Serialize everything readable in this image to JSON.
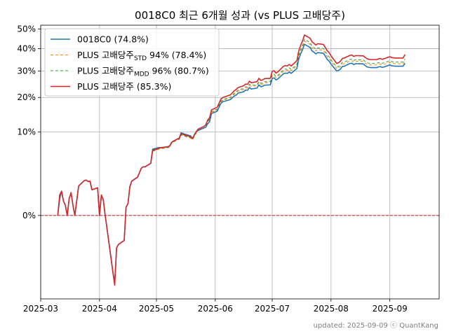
{
  "chart_data": {
    "type": "line",
    "title": "0018C0 최근 6개월 성과 (vs PLUS 고배당주)",
    "footer": "updated: 2025-09-09 ⓒ QuantKang",
    "xlim": [
      "2025-03-01",
      "2025-09-27"
    ],
    "ylim": [
      -0.1,
      0.52
    ],
    "y_scale": "signed-sqrt",
    "grid": true,
    "legend_position": "top-left",
    "zero_line": {
      "value": 0,
      "color": "#d62728",
      "style": "dashed"
    },
    "x_ticks": [
      {
        "date": "2025-03-01",
        "label": "2025-03"
      },
      {
        "date": "2025-04-01",
        "label": "2025-04"
      },
      {
        "date": "2025-05-01",
        "label": "2025-05"
      },
      {
        "date": "2025-06-01",
        "label": "2025-06"
      },
      {
        "date": "2025-07-01",
        "label": "2025-07"
      },
      {
        "date": "2025-08-01",
        "label": "2025-08"
      },
      {
        "date": "2025-09-01",
        "label": "2025-09"
      }
    ],
    "y_ticks": [
      {
        "value": 0.0,
        "label": "0%"
      },
      {
        "value": 0.1,
        "label": "10%"
      },
      {
        "value": 0.2,
        "label": "20%"
      },
      {
        "value": 0.3,
        "label": "30%"
      },
      {
        "value": 0.4,
        "label": "40%"
      },
      {
        "value": 0.5,
        "label": "50%"
      }
    ],
    "x": [
      "2025-03-10",
      "2025-03-11",
      "2025-03-12",
      "2025-03-13",
      "2025-03-14",
      "2025-03-15",
      "2025-03-16",
      "2025-03-17",
      "2025-03-18",
      "2025-03-19",
      "2025-03-21",
      "2025-03-24",
      "2025-03-25",
      "2025-03-26",
      "2025-03-27",
      "2025-03-28",
      "2025-03-31",
      "2025-04-01",
      "2025-04-02",
      "2025-04-03",
      "2025-04-04",
      "2025-04-07",
      "2025-04-08",
      "2025-04-09",
      "2025-04-10",
      "2025-04-11",
      "2025-04-14",
      "2025-04-15",
      "2025-04-16",
      "2025-04-17",
      "2025-04-18",
      "2025-04-21",
      "2025-04-22",
      "2025-04-23",
      "2025-04-24",
      "2025-04-25",
      "2025-04-28",
      "2025-04-29",
      "2025-04-30",
      "2025-05-01",
      "2025-05-02",
      "2025-05-07",
      "2025-05-08",
      "2025-05-09",
      "2025-05-12",
      "2025-05-13",
      "2025-05-14",
      "2025-05-16",
      "2025-05-19",
      "2025-05-20",
      "2025-05-21",
      "2025-05-22",
      "2025-05-23",
      "2025-05-26",
      "2025-05-27",
      "2025-05-28",
      "2025-05-29",
      "2025-05-30",
      "2025-06-02",
      "2025-06-04",
      "2025-06-05",
      "2025-06-09",
      "2025-06-10",
      "2025-06-11",
      "2025-06-12",
      "2025-06-13",
      "2025-06-16",
      "2025-06-17",
      "2025-06-18",
      "2025-06-19",
      "2025-06-20",
      "2025-06-23",
      "2025-06-24",
      "2025-06-25",
      "2025-06-26",
      "2025-06-27",
      "2025-06-30",
      "2025-07-01",
      "2025-07-02",
      "2025-07-03",
      "2025-07-04",
      "2025-07-07",
      "2025-07-08",
      "2025-07-09",
      "2025-07-10",
      "2025-07-11",
      "2025-07-14",
      "2025-07-15",
      "2025-07-16",
      "2025-07-17",
      "2025-07-18",
      "2025-07-21",
      "2025-07-22",
      "2025-07-23",
      "2025-07-24",
      "2025-07-25",
      "2025-07-28",
      "2025-07-29",
      "2025-07-30",
      "2025-07-31",
      "2025-08-01",
      "2025-08-04",
      "2025-08-05",
      "2025-08-06",
      "2025-08-07",
      "2025-08-08",
      "2025-08-11",
      "2025-08-12",
      "2025-08-13",
      "2025-08-14",
      "2025-08-18",
      "2025-08-19",
      "2025-08-20",
      "2025-08-21",
      "2025-08-22",
      "2025-08-25",
      "2025-08-26",
      "2025-08-27",
      "2025-08-28",
      "2025-08-29",
      "2025-09-01",
      "2025-09-02",
      "2025-09-03",
      "2025-09-04",
      "2025-09-05",
      "2025-09-08",
      "2025-09-09"
    ],
    "series": [
      {
        "name": "0018C0 (74.8%)",
        "legend": {
          "main": "0018C0 (74.8%)",
          "sub": "",
          "tail": ""
        },
        "color": "#1f77b4",
        "dash": "",
        "width": 1.6,
        "values": [
          0.0,
          0.004,
          0.0085,
          0.003,
          0.0015,
          0.0,
          0.004,
          0.0075,
          0.0015,
          0.0,
          0.0125,
          0.0175,
          0.018,
          0.0165,
          0.017,
          0.0095,
          0.011,
          0.0,
          0.006,
          0.0035,
          0.0,
          -0.025,
          -0.045,
          -0.065,
          -0.015,
          -0.012,
          -0.009,
          0.001,
          0.002,
          0.012,
          0.017,
          0.021,
          0.026,
          0.032,
          0.034,
          0.034,
          0.039,
          0.063,
          0.064,
          0.065,
          0.066,
          0.067,
          0.07,
          0.077,
          0.084,
          0.086,
          0.098,
          0.095,
          0.091,
          0.085,
          0.094,
          0.101,
          0.104,
          0.11,
          0.112,
          0.121,
          0.126,
          0.149,
          0.156,
          0.181,
          0.186,
          0.193,
          0.199,
          0.205,
          0.208,
          0.215,
          0.22,
          0.226,
          0.225,
          0.235,
          0.23,
          0.233,
          0.245,
          0.238,
          0.24,
          0.244,
          0.245,
          0.27,
          0.272,
          0.264,
          0.268,
          0.289,
          0.291,
          0.29,
          0.296,
          0.29,
          0.31,
          0.352,
          0.375,
          0.395,
          0.421,
          0.405,
          0.389,
          0.383,
          0.375,
          0.381,
          0.378,
          0.365,
          0.35,
          0.342,
          0.329,
          0.3,
          0.302,
          0.308,
          0.319,
          0.32,
          0.332,
          0.333,
          0.327,
          0.331,
          0.33,
          0.323,
          0.317,
          0.315,
          0.314,
          0.314,
          0.317,
          0.318,
          0.315,
          0.317,
          0.326,
          0.322,
          0.321,
          0.32,
          0.32,
          0.32,
          0.333
        ]
      },
      {
        "name": "PLUS 고배당주STD 94% (78.4%)",
        "legend": {
          "main": "PLUS 고배당주",
          "sub": "STD",
          "tail": " 94% (78.4%)"
        },
        "color": "#ff7f0e",
        "dash": "4,3",
        "width": 1.0,
        "values": [
          0.0,
          0.005,
          0.0085,
          0.003,
          0.0015,
          0.0,
          0.004,
          0.0075,
          0.0015,
          0.0,
          0.0125,
          0.0175,
          0.018,
          0.0165,
          0.017,
          0.0095,
          0.011,
          0.0,
          0.006,
          0.0035,
          0.0,
          -0.025,
          -0.045,
          -0.068,
          -0.015,
          -0.012,
          -0.009,
          0.001,
          0.002,
          0.012,
          0.017,
          0.021,
          0.026,
          0.032,
          0.034,
          0.034,
          0.039,
          0.059,
          0.06,
          0.061,
          0.063,
          0.066,
          0.067,
          0.075,
          0.082,
          0.083,
          0.093,
          0.09,
          0.086,
          0.082,
          0.09,
          0.098,
          0.103,
          0.109,
          0.113,
          0.125,
          0.131,
          0.152,
          0.159,
          0.185,
          0.19,
          0.198,
          0.205,
          0.211,
          0.215,
          0.222,
          0.228,
          0.234,
          0.233,
          0.244,
          0.239,
          0.242,
          0.254,
          0.247,
          0.249,
          0.253,
          0.254,
          0.28,
          0.282,
          0.273,
          0.277,
          0.299,
          0.302,
          0.301,
          0.307,
          0.301,
          0.322,
          0.364,
          0.388,
          0.409,
          0.437,
          0.42,
          0.403,
          0.397,
          0.389,
          0.395,
          0.392,
          0.378,
          0.363,
          0.355,
          0.341,
          0.31,
          0.312,
          0.319,
          0.33,
          0.331,
          0.343,
          0.344,
          0.338,
          0.342,
          0.341,
          0.334,
          0.328,
          0.326,
          0.325,
          0.325,
          0.328,
          0.329,
          0.326,
          0.328,
          0.337,
          0.333,
          0.332,
          0.331,
          0.331,
          0.331,
          0.345
        ]
      },
      {
        "name": "PLUS 고배당주MDD 96% (80.7%)",
        "legend": {
          "main": "PLUS 고배당주",
          "sub": "MDD",
          "tail": " 96% (80.7%)"
        },
        "color": "#2ca02c",
        "dash": "4,3",
        "width": 1.0,
        "values": [
          0.0,
          0.005,
          0.0085,
          0.003,
          0.0015,
          0.0,
          0.004,
          0.0075,
          0.0015,
          0.0,
          0.0125,
          0.0175,
          0.018,
          0.0165,
          0.017,
          0.0095,
          0.011,
          0.0,
          0.006,
          0.0035,
          0.0,
          -0.025,
          -0.045,
          -0.068,
          -0.015,
          -0.012,
          -0.009,
          0.001,
          0.002,
          0.012,
          0.017,
          0.021,
          0.026,
          0.032,
          0.034,
          0.034,
          0.039,
          0.06,
          0.061,
          0.062,
          0.064,
          0.067,
          0.068,
          0.076,
          0.083,
          0.084,
          0.094,
          0.091,
          0.087,
          0.083,
          0.091,
          0.099,
          0.104,
          0.11,
          0.114,
          0.127,
          0.133,
          0.155,
          0.162,
          0.188,
          0.193,
          0.201,
          0.208,
          0.215,
          0.219,
          0.226,
          0.232,
          0.238,
          0.237,
          0.248,
          0.243,
          0.246,
          0.258,
          0.251,
          0.253,
          0.257,
          0.258,
          0.285,
          0.287,
          0.278,
          0.282,
          0.305,
          0.308,
          0.306,
          0.313,
          0.306,
          0.328,
          0.371,
          0.396,
          0.417,
          0.446,
          0.429,
          0.412,
          0.405,
          0.397,
          0.403,
          0.4,
          0.386,
          0.371,
          0.362,
          0.348,
          0.317,
          0.319,
          0.326,
          0.337,
          0.338,
          0.35,
          0.351,
          0.345,
          0.349,
          0.348,
          0.341,
          0.335,
          0.333,
          0.332,
          0.332,
          0.335,
          0.336,
          0.333,
          0.335,
          0.344,
          0.34,
          0.339,
          0.338,
          0.338,
          0.338,
          0.352
        ]
      },
      {
        "name": "PLUS 고배당주 (85.3%)",
        "legend": {
          "main": "PLUS 고배당주 (85.3%)",
          "sub": "",
          "tail": ""
        },
        "color": "#d62728",
        "dash": "",
        "width": 1.6,
        "values": [
          0.0,
          0.006,
          0.0085,
          0.003,
          0.0015,
          0.0,
          0.004,
          0.0075,
          0.0015,
          0.0,
          0.0125,
          0.0175,
          0.018,
          0.0165,
          0.017,
          0.0095,
          0.011,
          0.0,
          0.006,
          0.0035,
          0.0,
          -0.025,
          -0.045,
          -0.07,
          -0.015,
          -0.012,
          -0.009,
          0.001,
          0.002,
          0.012,
          0.017,
          0.021,
          0.026,
          0.032,
          0.034,
          0.034,
          0.039,
          0.061,
          0.062,
          0.063,
          0.065,
          0.068,
          0.069,
          0.077,
          0.084,
          0.085,
          0.096,
          0.093,
          0.089,
          0.085,
          0.093,
          0.101,
          0.107,
          0.114,
          0.118,
          0.131,
          0.137,
          0.16,
          0.168,
          0.195,
          0.2,
          0.209,
          0.216,
          0.223,
          0.228,
          0.235,
          0.242,
          0.248,
          0.247,
          0.259,
          0.253,
          0.257,
          0.27,
          0.262,
          0.264,
          0.269,
          0.27,
          0.298,
          0.301,
          0.291,
          0.296,
          0.32,
          0.323,
          0.321,
          0.328,
          0.321,
          0.344,
          0.389,
          0.416,
          0.438,
          0.468,
          0.451,
          0.433,
          0.426,
          0.417,
          0.424,
          0.42,
          0.405,
          0.39,
          0.381,
          0.366,
          0.332,
          0.335,
          0.342,
          0.354,
          0.356,
          0.368,
          0.37,
          0.363,
          0.367,
          0.366,
          0.359,
          0.353,
          0.35,
          0.349,
          0.349,
          0.352,
          0.354,
          0.35,
          0.353,
          0.362,
          0.358,
          0.357,
          0.356,
          0.356,
          0.356,
          0.372
        ]
      }
    ]
  }
}
